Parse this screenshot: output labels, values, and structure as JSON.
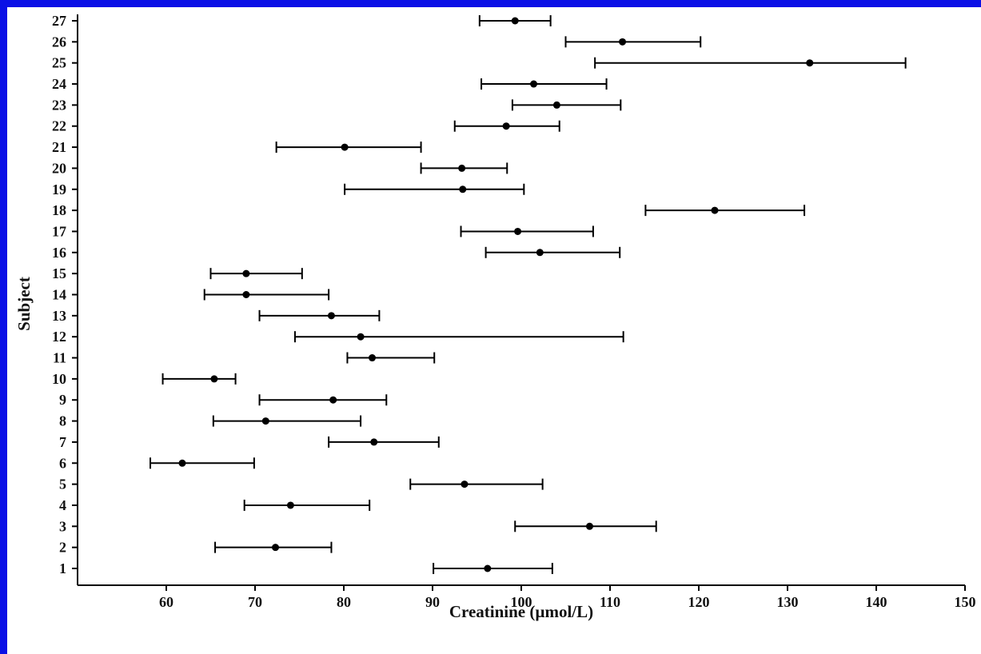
{
  "chart_data": {
    "type": "scatter",
    "title": "",
    "xlabel": "Creatinine (µmol/L)",
    "ylabel": "Subject",
    "xlim": [
      50,
      150
    ],
    "xticks": [
      60,
      70,
      80,
      90,
      100,
      110,
      120,
      130,
      140,
      150
    ],
    "ylim": [
      0,
      27
    ],
    "grid": false,
    "legend": "none",
    "colors": {
      "frame": "#0a10e6",
      "marks": "#000000",
      "background": "#ffffff"
    },
    "subjects": [
      {
        "subject": 1,
        "mean": 96.2,
        "low": 90.1,
        "high": 103.5
      },
      {
        "subject": 2,
        "mean": 72.3,
        "low": 65.5,
        "high": 78.6
      },
      {
        "subject": 3,
        "mean": 107.7,
        "low": 99.3,
        "high": 115.2
      },
      {
        "subject": 4,
        "mean": 74.0,
        "low": 68.8,
        "high": 82.9
      },
      {
        "subject": 5,
        "mean": 93.6,
        "low": 87.5,
        "high": 102.4
      },
      {
        "subject": 6,
        "mean": 61.8,
        "low": 58.2,
        "high": 69.9
      },
      {
        "subject": 7,
        "mean": 83.4,
        "low": 78.3,
        "high": 90.7
      },
      {
        "subject": 8,
        "mean": 71.2,
        "low": 65.3,
        "high": 81.9
      },
      {
        "subject": 9,
        "mean": 78.8,
        "low": 70.5,
        "high": 84.8
      },
      {
        "subject": 10,
        "mean": 65.4,
        "low": 59.6,
        "high": 67.8
      },
      {
        "subject": 11,
        "mean": 83.2,
        "low": 80.4,
        "high": 90.2
      },
      {
        "subject": 12,
        "mean": 81.9,
        "low": 74.5,
        "high": 111.5
      },
      {
        "subject": 13,
        "mean": 78.6,
        "low": 70.5,
        "high": 84.0
      },
      {
        "subject": 14,
        "mean": 69.0,
        "low": 64.3,
        "high": 78.3
      },
      {
        "subject": 15,
        "mean": 69.0,
        "low": 65.0,
        "high": 75.3
      },
      {
        "subject": 16,
        "mean": 102.1,
        "low": 96.0,
        "high": 111.1
      },
      {
        "subject": 17,
        "mean": 99.6,
        "low": 93.2,
        "high": 108.1
      },
      {
        "subject": 18,
        "mean": 121.8,
        "low": 114.0,
        "high": 131.9
      },
      {
        "subject": 19,
        "mean": 93.4,
        "low": 80.1,
        "high": 100.3
      },
      {
        "subject": 20,
        "mean": 93.3,
        "low": 88.7,
        "high": 98.4
      },
      {
        "subject": 21,
        "mean": 80.1,
        "low": 72.4,
        "high": 88.7
      },
      {
        "subject": 22,
        "mean": 98.3,
        "low": 92.5,
        "high": 104.3
      },
      {
        "subject": 23,
        "mean": 104.0,
        "low": 99.0,
        "high": 111.2
      },
      {
        "subject": 24,
        "mean": 101.4,
        "low": 95.5,
        "high": 109.6
      },
      {
        "subject": 25,
        "mean": 132.5,
        "low": 108.3,
        "high": 143.3
      },
      {
        "subject": 26,
        "mean": 111.4,
        "low": 105.0,
        "high": 120.2
      },
      {
        "subject": 27,
        "mean": 99.3,
        "low": 95.3,
        "high": 103.3
      }
    ]
  }
}
